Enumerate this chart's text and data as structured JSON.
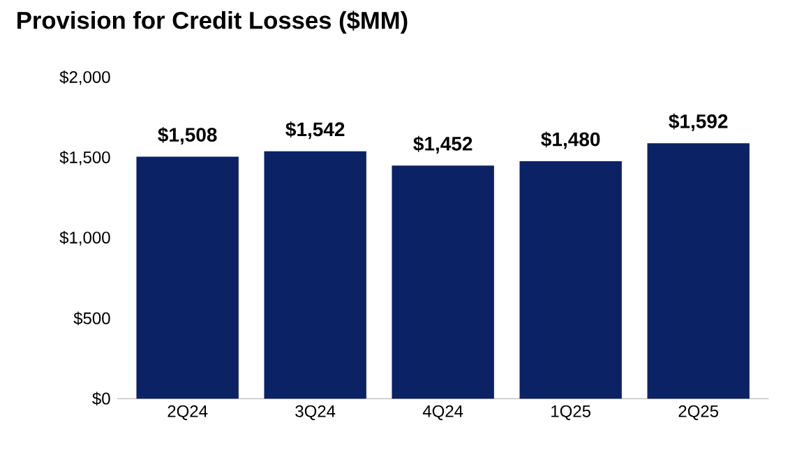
{
  "chart_data": {
    "type": "bar",
    "title": "Provision for Credit Losses ($MM)",
    "categories": [
      "2Q24",
      "3Q24",
      "4Q24",
      "1Q25",
      "2Q25"
    ],
    "values": [
      1508,
      1542,
      1452,
      1480,
      1592
    ],
    "value_labels": [
      "$1,508",
      "$1,542",
      "$1,452",
      "$1,480",
      "$1,592"
    ],
    "color": "#0b2265",
    "ylim": [
      0,
      2000
    ],
    "yticks": [
      {
        "value": 0,
        "label": "$0"
      },
      {
        "value": 500,
        "label": "$500"
      },
      {
        "value": 1000,
        "label": "$1,000"
      },
      {
        "value": 1500,
        "label": "$1,500"
      },
      {
        "value": 2000,
        "label": "$2,000"
      }
    ],
    "grid": false
  }
}
